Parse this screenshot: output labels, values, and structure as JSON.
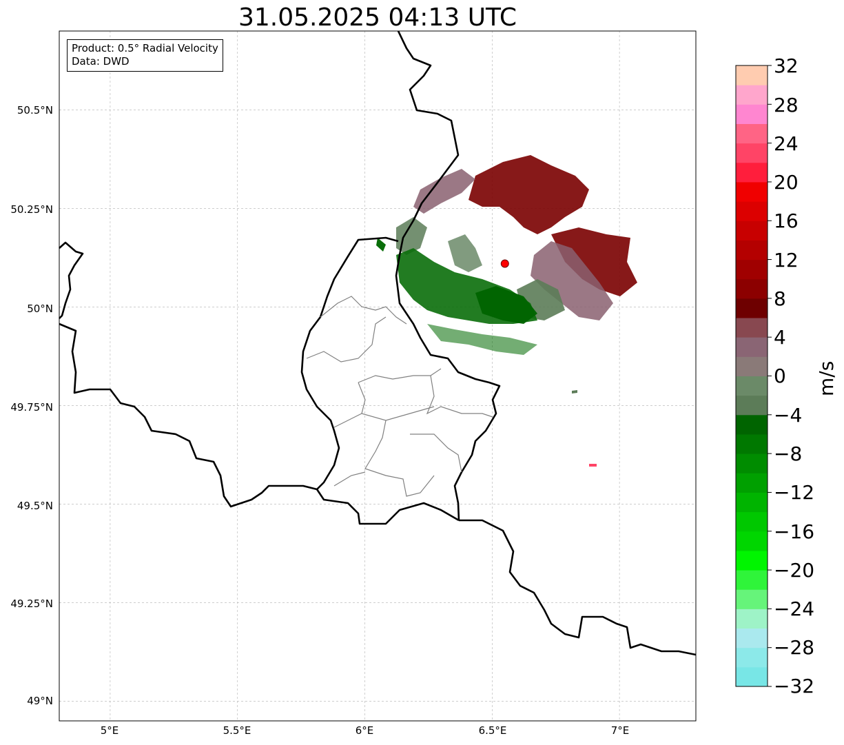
{
  "title": "31.05.2025 04:13 UTC",
  "info": {
    "product": "Product: 0.5° Radial Velocity",
    "data_source": "Data: DWD"
  },
  "map": {
    "lon_range": [
      4.8,
      7.3
    ],
    "lat_range": [
      48.95,
      50.7
    ],
    "lat_ticks": [
      {
        "value": 50.5,
        "label": "50.5°N"
      },
      {
        "value": 50.25,
        "label": "50.25°N"
      },
      {
        "value": 50.0,
        "label": "50°N"
      },
      {
        "value": 49.75,
        "label": "49.75°N"
      },
      {
        "value": 49.5,
        "label": "49.5°N"
      },
      {
        "value": 49.25,
        "label": "49.25°N"
      },
      {
        "value": 49.0,
        "label": "49°N"
      }
    ],
    "lon_ticks": [
      {
        "value": 5.0,
        "label": "5°E"
      },
      {
        "value": 5.5,
        "label": "5.5°E"
      },
      {
        "value": 6.0,
        "label": "6°E"
      },
      {
        "value": 6.5,
        "label": "6.5°E"
      },
      {
        "value": 7.0,
        "label": "7°E"
      }
    ],
    "radar_site": {
      "lon": 6.55,
      "lat": 50.11,
      "color": "#ff0000"
    },
    "gridlines": true
  },
  "colorbar": {
    "label": "m/s",
    "min": -32,
    "max": 32,
    "ticks": [
      "32",
      "28",
      "24",
      "20",
      "16",
      "12",
      "8",
      "4",
      "0",
      "−4",
      "−8",
      "−12",
      "−16",
      "−20",
      "−24",
      "−28",
      "−32"
    ],
    "colors": [
      "#78e6e6",
      "#8ce9e9",
      "#aae9ee",
      "#9ef3c7",
      "#66f47a",
      "#2ff43a",
      "#00f500",
      "#00d600",
      "#00c800",
      "#00b400",
      "#00a000",
      "#008c00",
      "#007800",
      "#006400",
      "#5c7c58",
      "#6b8a68",
      "#8a7a78",
      "#8a6574",
      "#884850",
      "#6e0000",
      "#8c0000",
      "#a00000",
      "#b40000",
      "#c80000",
      "#dc0000",
      "#f00000",
      "#ff1e3c",
      "#ff4466",
      "#ff6485",
      "#ff86d0",
      "#ffa6cc",
      "#ffccb0"
    ]
  }
}
